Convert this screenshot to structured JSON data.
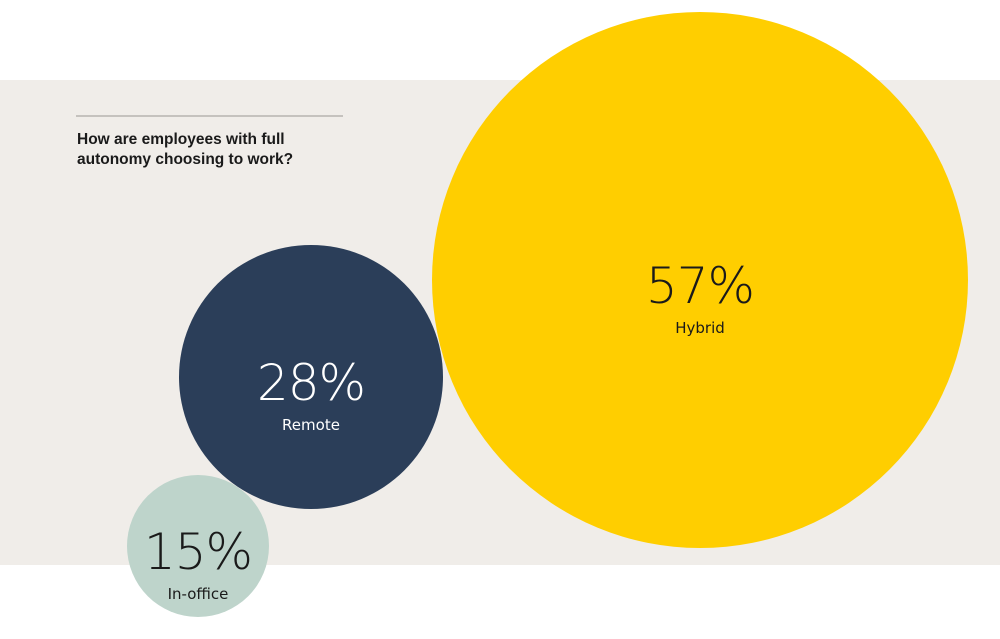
{
  "chart_data": {
    "type": "bubble",
    "title": "How are employees with full autonomy choosing to work?",
    "title_lines": [
      "How are employees with full",
      "autonomy choosing to work?"
    ],
    "bubbles": [
      {
        "label": "Hybrid",
        "value": 57,
        "display": "57%",
        "color": "#FFCE00",
        "text_color": "#1a1a1a"
      },
      {
        "label": "Remote",
        "value": 28,
        "display": "28%",
        "color": "#2B3E59",
        "text_color": "#ffffff"
      },
      {
        "label": "In-office",
        "value": 15,
        "display": "15%",
        "color": "#BED4CB",
        "text_color": "#1a1a1a"
      }
    ],
    "unit": "%",
    "background_color": "#F0EDE9"
  }
}
